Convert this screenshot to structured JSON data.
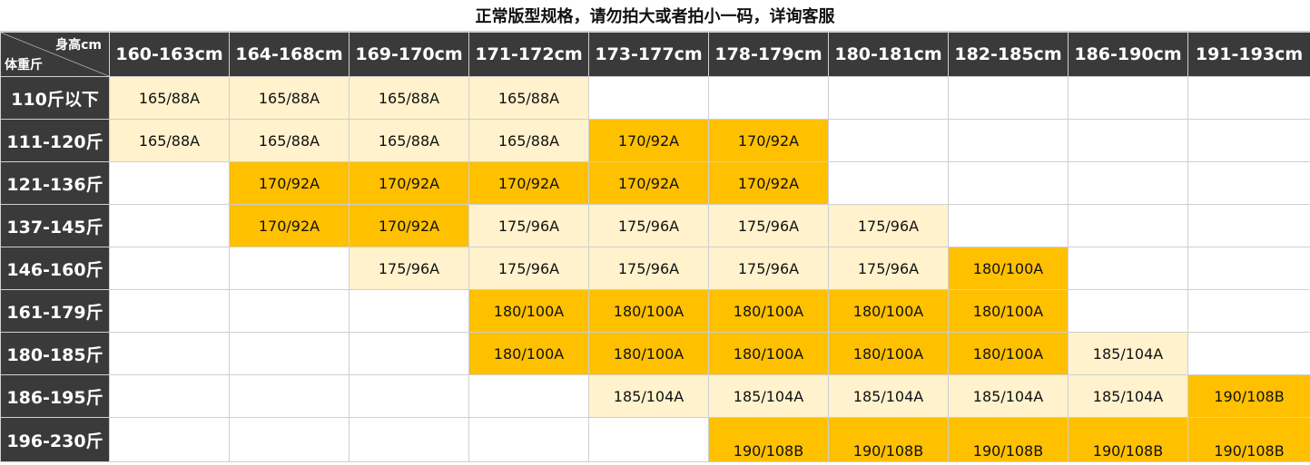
{
  "title": "正常版型规格，请勿拍大或者拍小一码，详询客服",
  "corner": {
    "top_label": "身高cm",
    "bottom_label": "体重斤"
  },
  "colors": {
    "header_bg": "#3a3a3a",
    "light_cell": "#fff2cc",
    "orange_cell": "#ffc000"
  },
  "columns": [
    "160-163cm",
    "164-168cm",
    "169-170cm",
    "171-172cm",
    "173-177cm",
    "178-179cm",
    "180-181cm",
    "182-185cm",
    "186-190cm",
    "191-193cm"
  ],
  "rows": [
    {
      "label": "110斤以下",
      "cells": [
        {
          "v": "165/88A",
          "c": "light"
        },
        {
          "v": "165/88A",
          "c": "light"
        },
        {
          "v": "165/88A",
          "c": "light"
        },
        {
          "v": "165/88A",
          "c": "light"
        },
        {
          "v": "",
          "c": "empty"
        },
        {
          "v": "",
          "c": "empty"
        },
        {
          "v": "",
          "c": "empty"
        },
        {
          "v": "",
          "c": "empty"
        },
        {
          "v": "",
          "c": "empty"
        },
        {
          "v": "",
          "c": "empty"
        }
      ]
    },
    {
      "label": "111-120斤",
      "cells": [
        {
          "v": "165/88A",
          "c": "light"
        },
        {
          "v": "165/88A",
          "c": "light"
        },
        {
          "v": "165/88A",
          "c": "light"
        },
        {
          "v": "165/88A",
          "c": "light"
        },
        {
          "v": "170/92A",
          "c": "orange"
        },
        {
          "v": "170/92A",
          "c": "orange"
        },
        {
          "v": "",
          "c": "empty"
        },
        {
          "v": "",
          "c": "empty"
        },
        {
          "v": "",
          "c": "empty"
        },
        {
          "v": "",
          "c": "empty"
        }
      ]
    },
    {
      "label": "121-136斤",
      "cells": [
        {
          "v": "",
          "c": "empty"
        },
        {
          "v": "170/92A",
          "c": "orange"
        },
        {
          "v": "170/92A",
          "c": "orange"
        },
        {
          "v": "170/92A",
          "c": "orange"
        },
        {
          "v": "170/92A",
          "c": "orange"
        },
        {
          "v": "170/92A",
          "c": "orange"
        },
        {
          "v": "",
          "c": "empty"
        },
        {
          "v": "",
          "c": "empty"
        },
        {
          "v": "",
          "c": "empty"
        },
        {
          "v": "",
          "c": "empty"
        }
      ]
    },
    {
      "label": "137-145斤",
      "cells": [
        {
          "v": "",
          "c": "empty"
        },
        {
          "v": "170/92A",
          "c": "orange"
        },
        {
          "v": "170/92A",
          "c": "orange"
        },
        {
          "v": "175/96A",
          "c": "light"
        },
        {
          "v": "175/96A",
          "c": "light"
        },
        {
          "v": "175/96A",
          "c": "light"
        },
        {
          "v": "175/96A",
          "c": "light"
        },
        {
          "v": "",
          "c": "empty"
        },
        {
          "v": "",
          "c": "empty"
        },
        {
          "v": "",
          "c": "empty"
        }
      ]
    },
    {
      "label": "146-160斤",
      "cells": [
        {
          "v": "",
          "c": "empty"
        },
        {
          "v": "",
          "c": "empty"
        },
        {
          "v": "175/96A",
          "c": "light"
        },
        {
          "v": "175/96A",
          "c": "light"
        },
        {
          "v": "175/96A",
          "c": "light"
        },
        {
          "v": "175/96A",
          "c": "light"
        },
        {
          "v": "175/96A",
          "c": "light"
        },
        {
          "v": "180/100A",
          "c": "orange"
        },
        {
          "v": "",
          "c": "empty"
        },
        {
          "v": "",
          "c": "empty"
        }
      ]
    },
    {
      "label": "161-179斤",
      "cells": [
        {
          "v": "",
          "c": "empty"
        },
        {
          "v": "",
          "c": "empty"
        },
        {
          "v": "",
          "c": "empty"
        },
        {
          "v": "180/100A",
          "c": "orange"
        },
        {
          "v": "180/100A",
          "c": "orange"
        },
        {
          "v": "180/100A",
          "c": "orange"
        },
        {
          "v": "180/100A",
          "c": "orange"
        },
        {
          "v": "180/100A",
          "c": "orange"
        },
        {
          "v": "",
          "c": "empty"
        },
        {
          "v": "",
          "c": "empty"
        }
      ]
    },
    {
      "label": "180-185斤",
      "cells": [
        {
          "v": "",
          "c": "empty"
        },
        {
          "v": "",
          "c": "empty"
        },
        {
          "v": "",
          "c": "empty"
        },
        {
          "v": "180/100A",
          "c": "orange"
        },
        {
          "v": "180/100A",
          "c": "orange"
        },
        {
          "v": "180/100A",
          "c": "orange"
        },
        {
          "v": "180/100A",
          "c": "orange"
        },
        {
          "v": "180/100A",
          "c": "orange"
        },
        {
          "v": "185/104A",
          "c": "light"
        },
        {
          "v": "",
          "c": "empty"
        }
      ]
    },
    {
      "label": "186-195斤",
      "cells": [
        {
          "v": "",
          "c": "empty"
        },
        {
          "v": "",
          "c": "empty"
        },
        {
          "v": "",
          "c": "empty"
        },
        {
          "v": "",
          "c": "empty"
        },
        {
          "v": "185/104A",
          "c": "light"
        },
        {
          "v": "185/104A",
          "c": "light"
        },
        {
          "v": "185/104A",
          "c": "light"
        },
        {
          "v": "185/104A",
          "c": "light"
        },
        {
          "v": "185/104A",
          "c": "light"
        },
        {
          "v": "190/108B",
          "c": "orange"
        }
      ]
    },
    {
      "label": "196-230斤",
      "cells": [
        {
          "v": "",
          "c": "empty"
        },
        {
          "v": "",
          "c": "empty"
        },
        {
          "v": "",
          "c": "empty"
        },
        {
          "v": "",
          "c": "empty"
        },
        {
          "v": "",
          "c": "empty"
        },
        {
          "v": "190/108B",
          "c": "orange"
        },
        {
          "v": "190/108B",
          "c": "orange"
        },
        {
          "v": "190/108B",
          "c": "orange"
        },
        {
          "v": "190/108B",
          "c": "orange"
        },
        {
          "v": "190/108B",
          "c": "orange"
        }
      ]
    }
  ]
}
